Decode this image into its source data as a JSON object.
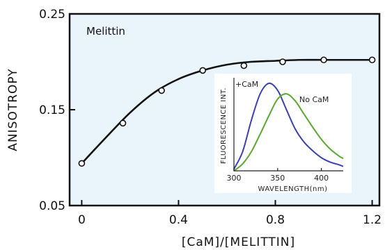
{
  "chart_data": [
    {
      "type": "scatter",
      "panel_label": "Melittin",
      "xlabel": "[CaM]/[MELITTIN]",
      "ylabel": "ANISOTROPY",
      "xlim": [
        -0.05,
        1.23
      ],
      "ylim": [
        0.05,
        0.25
      ],
      "x_ticks": [
        0,
        0.4,
        0.8,
        1.2
      ],
      "x_tick_labels": [
        "0",
        "0.4",
        "0.8",
        "1.2"
      ],
      "y_ticks": [
        0.05,
        0.15,
        0.25
      ],
      "y_tick_labels": [
        "0.05",
        "0.15",
        "0.25"
      ],
      "series": [
        {
          "x": [
            0,
            0.17,
            0.33,
            0.5,
            0.67,
            0.83,
            1.0,
            1.2
          ],
          "y": [
            0.094,
            0.136,
            0.17,
            0.191,
            0.196,
            0.2,
            0.202,
            0.202
          ]
        }
      ],
      "fit_curve": {
        "x": [
          0,
          0.1,
          0.2,
          0.3,
          0.4,
          0.5,
          0.6,
          0.7,
          0.8,
          0.9,
          1.0,
          1.1,
          1.2
        ],
        "y": [
          0.094,
          0.121,
          0.147,
          0.168,
          0.182,
          0.191,
          0.197,
          0.2,
          0.201,
          0.202,
          0.202,
          0.202,
          0.202
        ]
      },
      "background_color": "#eaf4fb",
      "grid": false
    },
    {
      "type": "line",
      "xlabel": "WAVELENGTH(nm)",
      "ylabel": "FLUORESCENCE INT.",
      "xlim": [
        300,
        425
      ],
      "x_ticks": [
        300,
        350,
        400
      ],
      "x_tick_labels": [
        "300",
        "350",
        "400"
      ],
      "series": [
        {
          "name": "+CaM",
          "color": "#3b3fb0",
          "x": [
            300,
            310,
            320,
            330,
            340,
            350,
            360,
            370,
            380,
            390,
            400,
            410,
            420,
            425
          ],
          "y": [
            0.02,
            0.22,
            0.58,
            0.88,
            1.0,
            0.92,
            0.7,
            0.48,
            0.33,
            0.23,
            0.15,
            0.1,
            0.07,
            0.05
          ]
        },
        {
          "name": "No CaM",
          "color": "#5aa832",
          "x": [
            300,
            310,
            320,
            330,
            340,
            350,
            360,
            370,
            380,
            390,
            400,
            410,
            420,
            425
          ],
          "y": [
            0.0,
            0.08,
            0.22,
            0.42,
            0.63,
            0.82,
            0.88,
            0.8,
            0.65,
            0.5,
            0.36,
            0.25,
            0.17,
            0.14
          ]
        }
      ]
    }
  ]
}
